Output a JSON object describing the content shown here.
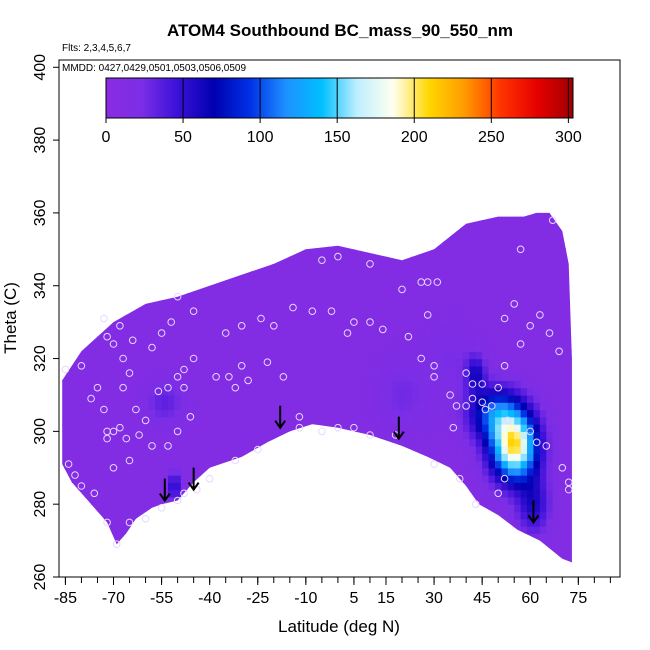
{
  "chart_data": {
    "type": "heatmap",
    "title": "ATOM4 Southbound BC_mass_90_550_nm",
    "flights_note": "Flts: 2,3,4,5,6,7",
    "dates_note": "MMDD: 0427,0429,0501,0503,0506,0509",
    "xlabel": "Latitude (deg N)",
    "ylabel": "Theta (C)",
    "xlim": [
      -87,
      88
    ],
    "ylim": [
      260,
      402
    ],
    "x_ticks": [
      -85,
      -70,
      -55,
      -40,
      -25,
      -10,
      5,
      15,
      30,
      45,
      60,
      75
    ],
    "y_ticks": [
      260,
      280,
      300,
      320,
      340,
      360,
      380,
      400
    ],
    "colorbar": {
      "ticks": [
        0,
        50,
        100,
        150,
        200,
        250,
        300
      ],
      "range": [
        0,
        303
      ],
      "colors": [
        "#8a2be2",
        "#7b2ee6",
        "#3a10d8",
        "#0000b0",
        "#0030e6",
        "#1e90ff",
        "#00bfff",
        "#bfefff",
        "#fffff0",
        "#ffd700",
        "#ff9900",
        "#ff3300",
        "#e60000",
        "#a00000"
      ]
    },
    "domain_top": [
      [
        -86,
        314
      ],
      [
        -80,
        322
      ],
      [
        -70,
        330
      ],
      [
        -60,
        335
      ],
      [
        -50,
        337
      ],
      [
        -40,
        340
      ],
      [
        -30,
        343
      ],
      [
        -20,
        346
      ],
      [
        -10,
        350
      ],
      [
        0,
        351
      ],
      [
        10,
        349
      ],
      [
        20,
        347
      ],
      [
        30,
        350
      ],
      [
        40,
        357
      ],
      [
        50,
        359
      ],
      [
        58,
        359
      ],
      [
        62,
        360
      ],
      [
        66,
        360
      ],
      [
        70,
        355
      ],
      [
        72,
        346
      ],
      [
        73,
        320
      ],
      [
        73,
        264
      ]
    ],
    "domain_bottom": [
      [
        73,
        264
      ],
      [
        70,
        265
      ],
      [
        63,
        270
      ],
      [
        56,
        273
      ],
      [
        50,
        277
      ],
      [
        44,
        280
      ],
      [
        40,
        285
      ],
      [
        35,
        290
      ],
      [
        28,
        293
      ],
      [
        20,
        296
      ],
      [
        10,
        299
      ],
      [
        0,
        301
      ],
      [
        -8,
        302
      ],
      [
        -15,
        300
      ],
      [
        -22,
        297
      ],
      [
        -30,
        293
      ],
      [
        -40,
        290
      ],
      [
        -45,
        286
      ],
      [
        -50,
        281
      ],
      [
        -55,
        280
      ],
      [
        -58,
        279
      ],
      [
        -63,
        276
      ],
      [
        -66,
        272
      ],
      [
        -69,
        269
      ],
      [
        -72,
        275
      ],
      [
        -78,
        281
      ],
      [
        -83,
        286
      ],
      [
        -86,
        291
      ],
      [
        -86,
        314
      ]
    ],
    "hotspots": [
      {
        "lat": 55,
        "theta": 296,
        "value": 190,
        "sx": 7,
        "sy": 9
      },
      {
        "lat": 49,
        "theta": 305,
        "value": 85,
        "sx": 8,
        "sy": 7
      },
      {
        "lat": 43,
        "theta": 316,
        "value": 45,
        "sx": 3,
        "sy": 5
      },
      {
        "lat": 61,
        "theta": 280,
        "value": 45,
        "sx": 5,
        "sy": 8
      },
      {
        "lat": -51,
        "theta": 285,
        "value": 45,
        "sx": 2,
        "sy": 4
      },
      {
        "lat": -54,
        "theta": 308,
        "value": 22,
        "sx": 6,
        "sy": 6
      },
      {
        "lat": 20,
        "theta": 310,
        "value": 15,
        "sx": 8,
        "sy": 10
      },
      {
        "lat": 35,
        "theta": 320,
        "value": 12,
        "sx": 8,
        "sy": 10
      }
    ],
    "samples": [
      [
        -85,
        317
      ],
      [
        -80,
        318
      ],
      [
        -77,
        309
      ],
      [
        -75,
        312
      ],
      [
        -73,
        306
      ],
      [
        -73,
        331
      ],
      [
        -72,
        326
      ],
      [
        -70,
        324
      ],
      [
        -68,
        329
      ],
      [
        -67,
        320
      ],
      [
        -67,
        312
      ],
      [
        -65,
        316
      ],
      [
        -64,
        325
      ],
      [
        -63,
        306
      ],
      [
        -72,
        300
      ],
      [
        -72,
        298
      ],
      [
        -70,
        300
      ],
      [
        -68,
        301
      ],
      [
        -66,
        298
      ],
      [
        -62,
        299
      ],
      [
        -60,
        303
      ],
      [
        -58,
        296
      ],
      [
        -56,
        311
      ],
      [
        -53,
        312
      ],
      [
        -50,
        315
      ],
      [
        -48,
        312
      ],
      [
        -46,
        304
      ],
      [
        -50,
        300
      ],
      [
        -53,
        296
      ],
      [
        -48,
        317
      ],
      [
        -45,
        320
      ],
      [
        -45,
        333
      ],
      [
        -50,
        337
      ],
      [
        -52,
        330
      ],
      [
        -55,
        327
      ],
      [
        -58,
        323
      ],
      [
        -38,
        315
      ],
      [
        -34,
        315
      ],
      [
        -32,
        312
      ],
      [
        -30,
        318
      ],
      [
        -28,
        314
      ],
      [
        -35,
        327
      ],
      [
        -30,
        329
      ],
      [
        -24,
        331
      ],
      [
        -20,
        329
      ],
      [
        -22,
        319
      ],
      [
        -17,
        315
      ],
      [
        -12,
        304
      ],
      [
        -12,
        301
      ],
      [
        -5,
        300
      ],
      [
        0,
        301
      ],
      [
        5,
        301
      ],
      [
        10,
        299
      ],
      [
        18,
        299
      ],
      [
        -14,
        334
      ],
      [
        -8,
        333
      ],
      [
        -2,
        333
      ],
      [
        5,
        330
      ],
      [
        10,
        330
      ],
      [
        14,
        328
      ],
      [
        3,
        327
      ],
      [
        -5,
        347
      ],
      [
        0,
        348
      ],
      [
        10,
        346
      ],
      [
        20,
        339
      ],
      [
        26,
        341
      ],
      [
        28,
        341
      ],
      [
        31,
        341
      ],
      [
        28,
        332
      ],
      [
        22,
        326
      ],
      [
        26,
        320
      ],
      [
        30,
        318
      ],
      [
        30,
        315
      ],
      [
        35,
        310
      ],
      [
        37,
        307
      ],
      [
        40,
        307
      ],
      [
        42,
        309
      ],
      [
        45,
        308
      ],
      [
        46,
        306
      ],
      [
        48,
        307
      ],
      [
        50,
        312
      ],
      [
        53,
        303
      ],
      [
        60,
        300
      ],
      [
        62,
        297
      ],
      [
        65,
        296
      ],
      [
        70,
        290
      ],
      [
        72,
        284
      ],
      [
        72,
        286
      ],
      [
        40,
        316
      ],
      [
        42,
        313
      ],
      [
        45,
        313
      ],
      [
        52,
        318
      ],
      [
        57,
        324
      ],
      [
        60,
        329
      ],
      [
        63,
        332
      ],
      [
        66,
        327
      ],
      [
        69,
        322
      ],
      [
        52,
        331
      ],
      [
        55,
        335
      ],
      [
        57,
        350
      ],
      [
        67,
        358
      ],
      [
        36,
        301
      ],
      [
        30,
        291
      ],
      [
        38,
        287
      ],
      [
        43,
        280
      ],
      [
        50,
        283
      ],
      [
        52,
        287
      ],
      [
        -25,
        295
      ],
      [
        -32,
        292
      ],
      [
        -40,
        287
      ],
      [
        -44,
        284
      ],
      [
        -48,
        283
      ],
      [
        -50,
        281
      ],
      [
        -55,
        279
      ],
      [
        -60,
        276
      ],
      [
        -65,
        275
      ],
      [
        -69,
        269
      ],
      [
        -72,
        275
      ],
      [
        -76,
        283
      ],
      [
        -80,
        285
      ],
      [
        -82,
        288
      ],
      [
        -84,
        291
      ],
      [
        -70,
        290
      ],
      [
        -65,
        292
      ]
    ],
    "arrows": [
      {
        "lat": -54,
        "theta": 281
      },
      {
        "lat": -45,
        "theta": 284
      },
      {
        "lat": -18,
        "theta": 301
      },
      {
        "lat": 19,
        "theta": 298
      },
      {
        "lat": 61,
        "theta": 275
      }
    ]
  }
}
